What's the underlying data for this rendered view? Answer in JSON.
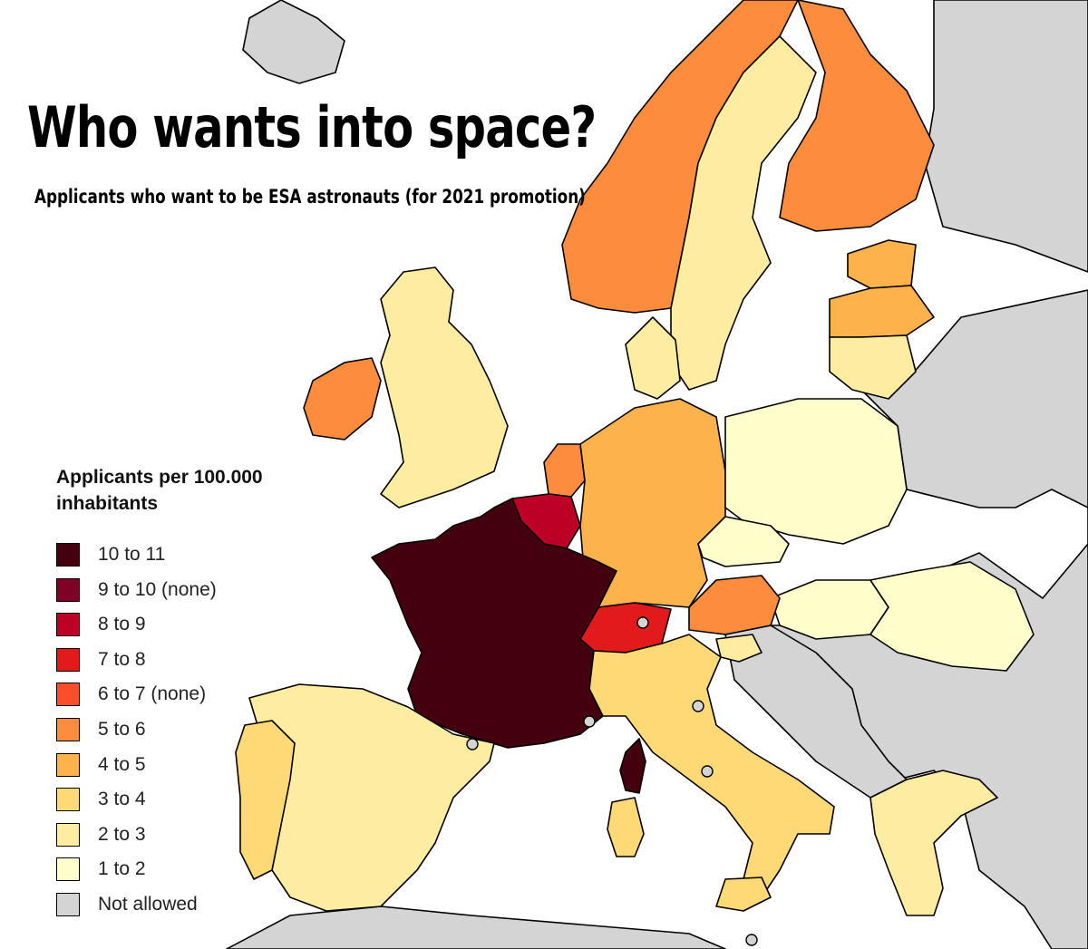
{
  "title": "Who wants into space?",
  "subtitle": "Applicants who want to be ESA astronauts (for 2021 promotion)",
  "legend": {
    "title": "Applicants per 100.000 inhabitants",
    "items": [
      {
        "label": "10 to 11",
        "color": "#45000f"
      },
      {
        "label": "9 to 10 (none)",
        "color": "#800026"
      },
      {
        "label": "8 to 9",
        "color": "#bd0026"
      },
      {
        "label": "7 to 8",
        "color": "#e31a1c"
      },
      {
        "label": "6 to 7 (none)",
        "color": "#fc4e2a"
      },
      {
        "label": "5 to 6",
        "color": "#fd8d3c"
      },
      {
        "label": "4 to 5",
        "color": "#feb24c"
      },
      {
        "label": "3 to 4",
        "color": "#fed976"
      },
      {
        "label": "2 to 3",
        "color": "#feeda0"
      },
      {
        "label": "1 to 2",
        "color": "#ffffcc"
      },
      {
        "label": "Not allowed",
        "color": "#d4d4d4"
      }
    ]
  },
  "map_colors": {
    "sea": "#ffffff",
    "not_allowed": "#d4d4d4",
    "marker": "#d4d4d4"
  }
}
